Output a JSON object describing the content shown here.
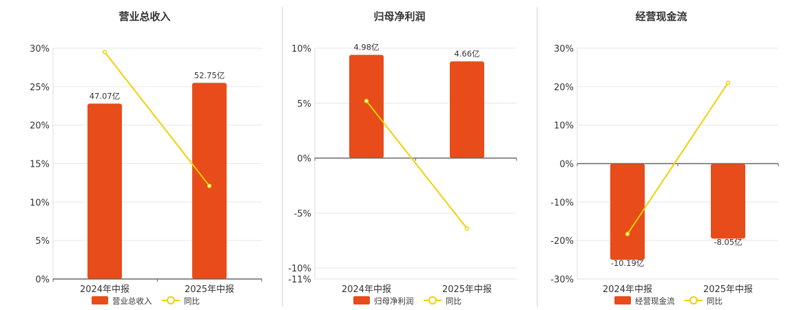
{
  "colors": {
    "bar": "#E84C1B",
    "line": "#F2D000",
    "grid": "#E6E6E6",
    "axis": "#666666",
    "divider": "#CCCCCC",
    "text": "#333333"
  },
  "chart_data": [
    {
      "type": "bar+line",
      "title": "营业总收入",
      "categories": [
        "2024年中报",
        "2025年中报"
      ],
      "series": [
        {
          "name": "营业总收入",
          "type": "bar",
          "values": [
            22.8,
            25.5
          ],
          "labels": [
            "47.07亿",
            "52.75亿"
          ]
        },
        {
          "name": "同比",
          "type": "line",
          "values": [
            29.5,
            12.1
          ]
        }
      ],
      "ylim": [
        0,
        30
      ],
      "yticks": [
        0,
        5,
        10,
        15,
        20,
        25,
        30
      ],
      "ytick_labels": [
        "0%",
        "5%",
        "10%",
        "15%",
        "20%",
        "25%",
        "30%"
      ],
      "grid": true,
      "legend": "bottom"
    },
    {
      "type": "bar+line",
      "title": "归母净利润",
      "categories": [
        "2024年中报",
        "2025年中报"
      ],
      "series": [
        {
          "name": "归母净利润",
          "type": "bar",
          "values": [
            9.4,
            8.8
          ],
          "labels": [
            "4.98亿",
            "4.66亿"
          ]
        },
        {
          "name": "同比",
          "type": "line",
          "values": [
            5.2,
            -6.4
          ]
        }
      ],
      "ylim": [
        -11,
        10
      ],
      "yticks": [
        -11,
        -10,
        -5,
        0,
        5,
        10
      ],
      "ytick_labels": [
        "-11%",
        "-10%",
        "-5%",
        "0%",
        "5%",
        "10%"
      ],
      "grid": true,
      "legend": "bottom"
    },
    {
      "type": "bar+line",
      "title": "经营现金流",
      "categories": [
        "2024年中报",
        "2025年中报"
      ],
      "series": [
        {
          "name": "经营现金流",
          "type": "bar",
          "values": [
            -25.0,
            -19.5
          ],
          "labels": [
            "-10.19亿",
            "-8.05亿"
          ]
        },
        {
          "name": "同比",
          "type": "line",
          "values": [
            -18.3,
            21.0
          ]
        }
      ],
      "ylim": [
        -30,
        30
      ],
      "yticks": [
        -30,
        -20,
        -10,
        0,
        10,
        20,
        30
      ],
      "ytick_labels": [
        "-30%",
        "-20%",
        "-10%",
        "0%",
        "10%",
        "20%",
        "30%"
      ],
      "grid": true,
      "legend": "bottom"
    }
  ]
}
